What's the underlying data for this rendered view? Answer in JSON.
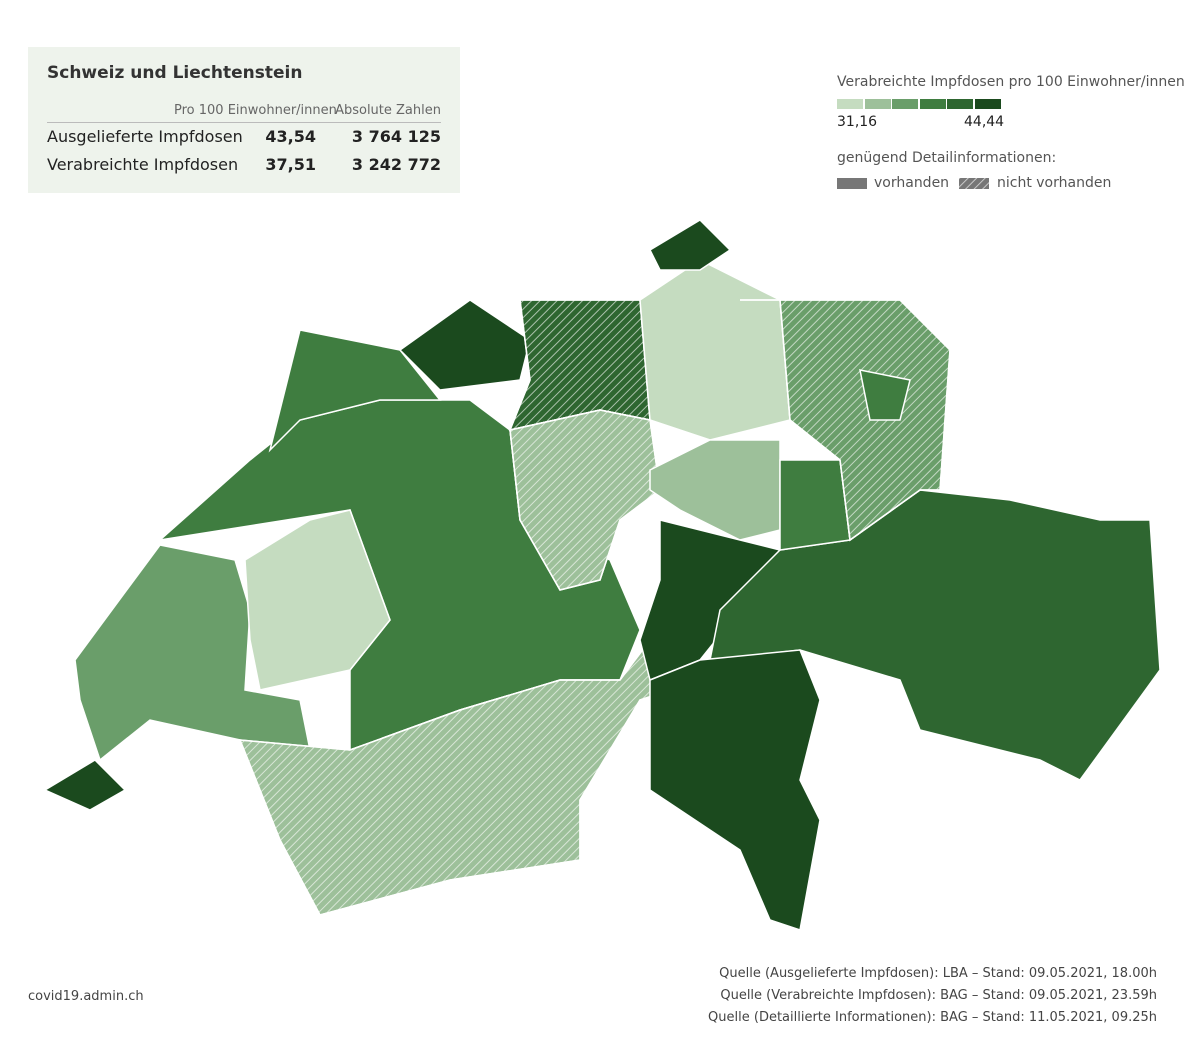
{
  "panel": {
    "title": "Schweiz und Liechtenstein",
    "columns": [
      "Pro 100 Einwohner/innen",
      "Absolute Zahlen"
    ],
    "rows": [
      [
        "Ausgelieferte Impfdosen",
        "43,54",
        "3 764 125"
      ],
      [
        "Verabreichte Impfdosen",
        "37,51",
        "3 242 772"
      ]
    ]
  },
  "legend": {
    "title": "Verabreichte Impfdosen pro 100 Einwohner/innen",
    "colors": [
      "#c5dcc0",
      "#9dc09a",
      "#6a9e6a",
      "#3f7d40",
      "#2e6630",
      "#1b4a1e"
    ],
    "min_label": "31,16",
    "max_label": "44,44",
    "detail_title": "genügend Detailinformationen:",
    "available": "vorhanden",
    "not_available": "nicht vorhanden"
  },
  "footer": {
    "site": "covid19.admin.ch",
    "sources": [
      "Quelle (Ausgelieferte Impfdosen): LBA – Stand: 09.05.2021, 18.00h",
      "Quelle (Verabreichte Impfdosen): BAG – Stand: 09.05.2021, 23.59h",
      "Quelle (Detaillierte Informationen): BAG – Stand: 11.05.2021, 09.25h"
    ]
  }
}
